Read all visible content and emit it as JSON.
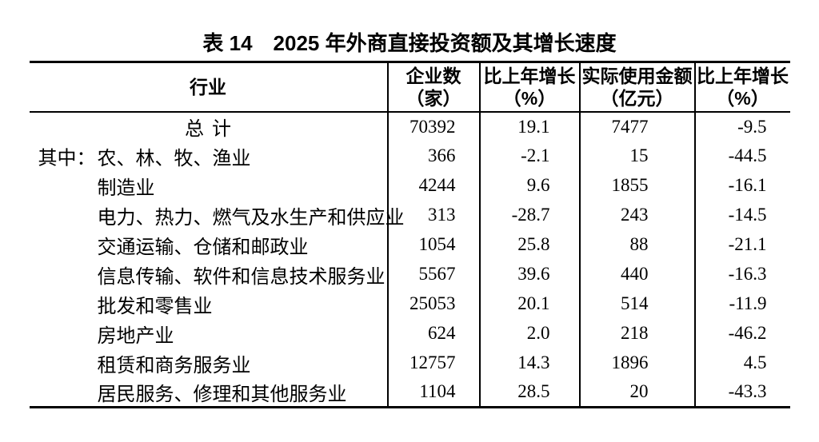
{
  "title": "表 14　2025 年外商直接投资额及其增长速度",
  "table": {
    "columns": [
      {
        "label": "行业",
        "unit": ""
      },
      {
        "label": "企业数",
        "unit": "（家）"
      },
      {
        "label": "比上年增长",
        "unit": "（%）"
      },
      {
        "label": "实际使用金额",
        "unit": "（亿元）"
      },
      {
        "label": "比上年增长",
        "unit": "（%）"
      }
    ],
    "rows": [
      {
        "prefix": "",
        "industry": "总计",
        "enterprises": "70392",
        "growth_enterprises": "19.1",
        "amount": "7477",
        "growth_amount": "-9.5"
      },
      {
        "prefix": "其中：",
        "industry": "农、林、牧、渔业",
        "enterprises": "366",
        "growth_enterprises": "-2.1",
        "amount": "15",
        "growth_amount": "-44.5"
      },
      {
        "prefix": "",
        "industry": "制造业",
        "enterprises": "4244",
        "growth_enterprises": "9.6",
        "amount": "1855",
        "growth_amount": "-16.1"
      },
      {
        "prefix": "",
        "industry": "电力、热力、燃气及水生产和供应业",
        "enterprises": "313",
        "growth_enterprises": "-28.7",
        "amount": "243",
        "growth_amount": "-14.5"
      },
      {
        "prefix": "",
        "industry": "交通运输、仓储和邮政业",
        "enterprises": "1054",
        "growth_enterprises": "25.8",
        "amount": "88",
        "growth_amount": "-21.1"
      },
      {
        "prefix": "",
        "industry": "信息传输、软件和信息技术服务业",
        "enterprises": "5567",
        "growth_enterprises": "39.6",
        "amount": "440",
        "growth_amount": "-16.3"
      },
      {
        "prefix": "",
        "industry": "批发和零售业",
        "enterprises": "25053",
        "growth_enterprises": "20.1",
        "amount": "514",
        "growth_amount": "-11.9"
      },
      {
        "prefix": "",
        "industry": "房地产业",
        "enterprises": "624",
        "growth_enterprises": "2.0",
        "amount": "218",
        "growth_amount": "-46.2"
      },
      {
        "prefix": "",
        "industry": "租赁和商务服务业",
        "enterprises": "12757",
        "growth_enterprises": "14.3",
        "amount": "1896",
        "growth_amount": "4.5"
      },
      {
        "prefix": "",
        "industry": "居民服务、修理和其他服务业",
        "enterprises": "1104",
        "growth_enterprises": "28.5",
        "amount": "20",
        "growth_amount": "-43.3"
      }
    ]
  }
}
